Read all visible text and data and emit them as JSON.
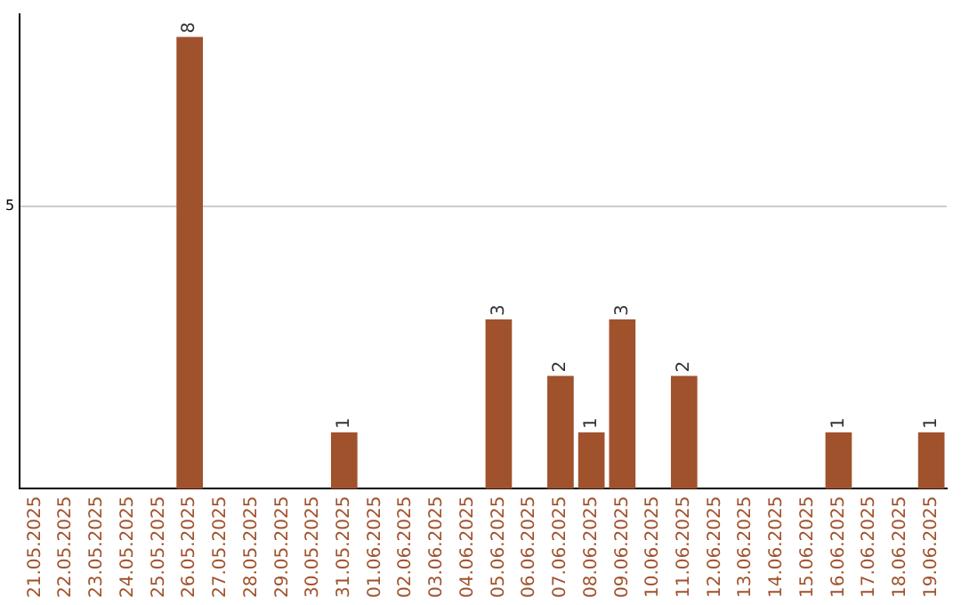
{
  "chart_data": {
    "type": "bar",
    "categories": [
      "21.05.2025",
      "22.05.2025",
      "23.05.2025",
      "24.05.2025",
      "25.05.2025",
      "26.05.2025",
      "27.05.2025",
      "28.05.2025",
      "29.05.2025",
      "30.05.2025",
      "31.05.2025",
      "01.06.2025",
      "02.06.2025",
      "03.06.2025",
      "04.06.2025",
      "05.06.2025",
      "06.06.2025",
      "07.06.2025",
      "08.06.2025",
      "09.06.2025",
      "10.06.2025",
      "11.06.2025",
      "12.06.2025",
      "13.06.2025",
      "14.06.2025",
      "15.06.2025",
      "16.06.2025",
      "17.06.2025",
      "18.06.2025",
      "19.06.2025"
    ],
    "values": [
      0,
      0,
      0,
      0,
      0,
      8,
      0,
      0,
      0,
      0,
      1,
      0,
      0,
      0,
      0,
      3,
      0,
      2,
      1,
      3,
      0,
      2,
      0,
      0,
      0,
      0,
      1,
      0,
      0,
      1
    ],
    "value_labels": [
      null,
      null,
      null,
      null,
      null,
      "8",
      null,
      null,
      null,
      null,
      "1",
      null,
      null,
      null,
      null,
      "3",
      null,
      "2",
      "1",
      "3",
      null,
      "2",
      null,
      null,
      null,
      null,
      "1",
      null,
      null,
      "1"
    ],
    "color": "#a0522d",
    "ylim": [
      0,
      8.4
    ],
    "yticks": [
      5
    ],
    "grid": "y",
    "legend": false
  }
}
